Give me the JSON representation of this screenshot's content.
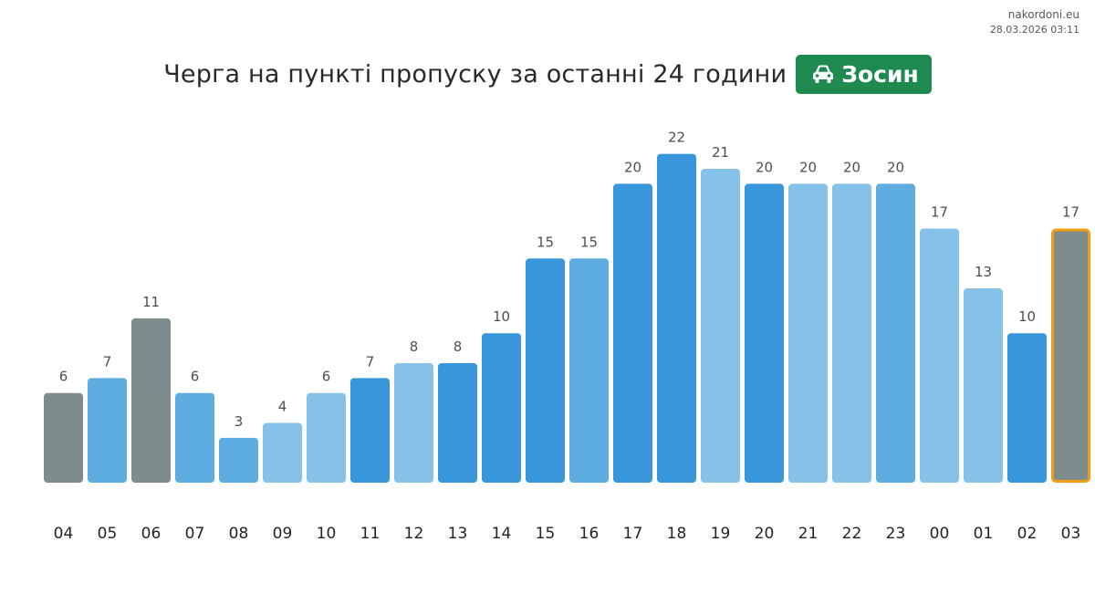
{
  "header": {
    "site": "nakordoni.eu",
    "timestamp": "28.03.2026 03:11",
    "title": "Черга на пункті пропуску за останні 24 години",
    "checkpoint": "Зосин",
    "checkpoint_icon": "car-icon",
    "badge_color": "#1e8a4f"
  },
  "colors": {
    "dark_blue": "#3897db",
    "mid_blue": "#5dade2",
    "light_blue": "#85c1e9",
    "gray": "#7f8c8d",
    "highlight_border": "#f39c12"
  },
  "chart_data": {
    "type": "bar",
    "title": "Черга на пункті пропуску за останні 24 години",
    "xlabel": "",
    "ylabel": "",
    "categories": [
      "04",
      "05",
      "06",
      "07",
      "08",
      "09",
      "10",
      "11",
      "12",
      "13",
      "14",
      "15",
      "16",
      "17",
      "18",
      "19",
      "20",
      "21",
      "22",
      "23",
      "00",
      "01",
      "02",
      "03"
    ],
    "values": [
      6,
      7,
      11,
      6,
      3,
      4,
      6,
      7,
      8,
      8,
      10,
      15,
      15,
      20,
      22,
      21,
      20,
      20,
      20,
      20,
      17,
      13,
      10,
      17
    ],
    "bar_colors": [
      "gray",
      "mid_blue",
      "gray",
      "mid_blue",
      "mid_blue",
      "light_blue",
      "light_blue",
      "dark_blue",
      "light_blue",
      "dark_blue",
      "dark_blue",
      "dark_blue",
      "mid_blue",
      "dark_blue",
      "dark_blue",
      "light_blue",
      "dark_blue",
      "light_blue",
      "light_blue",
      "mid_blue",
      "light_blue",
      "light_blue",
      "dark_blue",
      "gray"
    ],
    "highlighted_index": 23,
    "data_labels": true,
    "grid": false,
    "legend": "none",
    "ylim": [
      0,
      22
    ]
  }
}
